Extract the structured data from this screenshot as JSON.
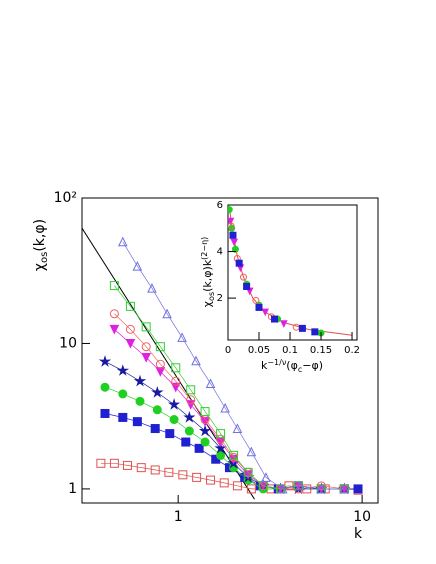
{
  "chart_data": [
    {
      "type": "scatter",
      "log_x": true,
      "log_y": true,
      "ylabel": {
        "symbol": "χ",
        "sub": "os",
        "rest": "(k,φ)"
      },
      "xlabel": "k",
      "xlim": [
        0.3,
        12.2
      ],
      "ylim": [
        0.8,
        100
      ],
      "xticks": [
        1,
        10
      ],
      "yticks": [
        1,
        10,
        {
          "value": 100,
          "label": "10²"
        }
      ],
      "fit_line": {
        "color": "#000000",
        "x": [
          0.3,
          2.6
        ],
        "values": [
          62,
          0.85
        ]
      },
      "series": [
        {
          "color": "#e05050",
          "marker": "square-open",
          "x": [
            0.38,
            0.45,
            0.53,
            0.63,
            0.75,
            0.89,
            1.06,
            1.26,
            1.5,
            1.78,
            2.1,
            2.5,
            3.2,
            4,
            5,
            6.3,
            8,
            9.5
          ],
          "values": [
            1.5,
            1.5,
            1.45,
            1.4,
            1.35,
            1.3,
            1.25,
            1.2,
            1.15,
            1.1,
            1.05,
            1.0,
            1.0,
            1.05,
            1.0,
            1.0,
            1.0,
            0.98
          ]
        },
        {
          "color": "#2020d0",
          "marker": "square",
          "x": [
            0.4,
            0.5,
            0.6,
            0.75,
            0.9,
            1.1,
            1.3,
            1.6,
            1.9,
            2.3,
            2.8,
            3.5,
            4.5,
            6,
            8,
            9.5
          ],
          "values": [
            3.3,
            3.1,
            2.9,
            2.6,
            2.4,
            2.1,
            1.9,
            1.6,
            1.4,
            1.2,
            1.05,
            1.0,
            1.05,
            1.0,
            1.0,
            1.0
          ]
        },
        {
          "color": "#20d020",
          "marker": "circle",
          "x": [
            0.4,
            0.5,
            0.62,
            0.77,
            0.95,
            1.15,
            1.4,
            1.7,
            2.0,
            2.4,
            2.9,
            3.6,
            4.5,
            6,
            8
          ],
          "values": [
            5,
            4.5,
            4,
            3.5,
            3,
            2.5,
            2.1,
            1.7,
            1.4,
            1.15,
            1.0,
            1.0,
            1.05,
            1.0,
            1.0
          ]
        },
        {
          "color": "#1a1aa0",
          "marker": "star",
          "x": [
            0.4,
            0.5,
            0.62,
            0.77,
            0.95,
            1.15,
            1.4,
            1.7,
            2.0,
            2.4,
            2.9,
            3.6,
            4.5,
            6,
            8
          ],
          "values": [
            7.5,
            6.5,
            5.5,
            4.6,
            3.8,
            3.1,
            2.5,
            1.9,
            1.5,
            1.2,
            1.05,
            1.0,
            1.0,
            1.0,
            1.0
          ]
        },
        {
          "color": "#e020e0",
          "marker": "triangle-down",
          "x": [
            0.45,
            0.55,
            0.67,
            0.8,
            0.97,
            1.17,
            1.4,
            1.7,
            2.0,
            2.4,
            2.9,
            3.6,
            4.5,
            6,
            8
          ],
          "values": [
            12.5,
            10,
            8,
            6.4,
            5,
            3.8,
            2.9,
            2.1,
            1.6,
            1.25,
            1.05,
            1.0,
            1.05,
            1.0,
            1.0
          ]
        },
        {
          "color": "#f06060",
          "marker": "circle-open",
          "x": [
            0.45,
            0.55,
            0.67,
            0.8,
            0.97,
            1.17,
            1.4,
            1.7,
            2.0,
            2.4,
            2.9,
            3.6,
            4.5,
            6,
            8
          ],
          "values": [
            16,
            12.5,
            9.5,
            7.2,
            5.5,
            4.1,
            3,
            2.2,
            1.65,
            1.3,
            1.05,
            1.0,
            1.0,
            1.05,
            1.0
          ]
        },
        {
          "color": "#30d030",
          "marker": "square-open",
          "x": [
            0.45,
            0.55,
            0.67,
            0.8,
            0.97,
            1.17,
            1.4,
            1.7,
            2.0,
            2.4,
            2.9,
            3.6,
            4.5,
            6,
            8
          ],
          "values": [
            25,
            18,
            13,
            9.5,
            6.8,
            4.8,
            3.4,
            2.4,
            1.7,
            1.3,
            1.05,
            1.0,
            1.05,
            1.0,
            1.0
          ]
        },
        {
          "color": "#7070e0",
          "marker": "triangle-open",
          "x": [
            0.5,
            0.6,
            0.72,
            0.87,
            1.05,
            1.25,
            1.5,
            1.8,
            2.1,
            2.5,
            3,
            3.7,
            4.6,
            6,
            8
          ],
          "values": [
            50,
            34,
            24,
            16,
            11,
            7.6,
            5.3,
            3.6,
            2.6,
            1.8,
            1.2,
            1.0,
            1.05,
            1.0,
            1.0
          ]
        }
      ]
    },
    {
      "type": "scatter",
      "ylabel": {
        "symbol": "χ",
        "sub": "os",
        "rest": "(k,φ)k",
        "sup": "(2−η)"
      },
      "xlabel": {
        "base": "k",
        "sup": "−1/ν",
        "open": "(φ",
        "sub": "c",
        "rest": "−φ)"
      },
      "xlim": [
        0,
        0.208
      ],
      "ylim": [
        0.2,
        6.0
      ],
      "xticks": [
        0,
        0.05,
        0.1,
        0.15,
        0.2
      ],
      "yticks": [
        2,
        4,
        6
      ],
      "fit_line": {
        "color": "#e05050",
        "x": [
          0.002,
          0.008,
          0.015,
          0.025,
          0.04,
          0.06,
          0.09,
          0.13,
          0.2
        ],
        "values": [
          5.9,
          4.8,
          3.8,
          2.9,
          2.0,
          1.4,
          0.95,
          0.65,
          0.4
        ]
      },
      "series": [
        {
          "color": "#e020e0",
          "marker": "triangle-down",
          "x": [
            0.004,
            0.01,
            0.02,
            0.035,
            0.06,
            0.09
          ],
          "values": [
            5.3,
            4.4,
            3.3,
            2.3,
            1.4,
            0.9
          ]
        },
        {
          "color": "#20d020",
          "marker": "circle",
          "x": [
            0.002,
            0.006,
            0.012,
            0.03,
            0.05,
            0.08,
            0.15
          ],
          "values": [
            5.8,
            5.0,
            4.1,
            2.6,
            1.7,
            1.1,
            0.5
          ]
        },
        {
          "color": "#f06060",
          "marker": "circle-open",
          "x": [
            0.005,
            0.015,
            0.025,
            0.045,
            0.07,
            0.11
          ],
          "values": [
            5.1,
            3.7,
            2.9,
            1.9,
            1.2,
            0.75
          ]
        },
        {
          "color": "#2020d0",
          "marker": "square",
          "x": [
            0.008,
            0.018,
            0.03,
            0.05,
            0.075,
            0.12,
            0.14
          ],
          "values": [
            4.7,
            3.5,
            2.5,
            1.6,
            1.1,
            0.7,
            0.55
          ]
        }
      ]
    }
  ]
}
